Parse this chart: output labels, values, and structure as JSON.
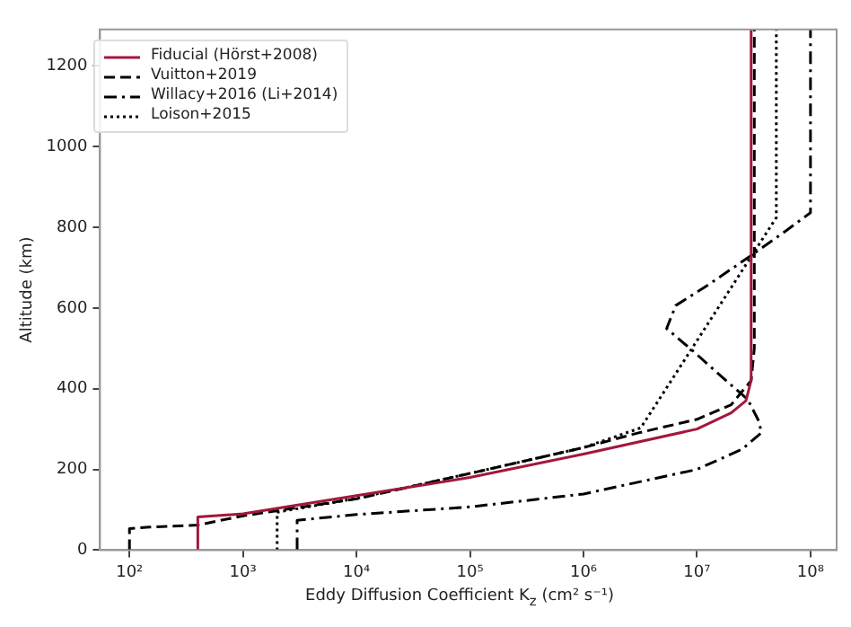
{
  "chart_data": {
    "type": "line",
    "xlabel": "Eddy Diffusion Coefficient K$_{z}$ (cm² s⁻¹)",
    "ylabel": "Altitude (km)",
    "log": "x",
    "grid": false,
    "legend": "top left",
    "marker": "none",
    "xlim": [
      55,
      170000000
    ],
    "ylim": [
      0,
      1290
    ],
    "xticks": [
      {
        "value": 100,
        "label": "10²"
      },
      {
        "value": 1000,
        "label": "10³"
      },
      {
        "value": 10000,
        "label": "10⁴"
      },
      {
        "value": 100000,
        "label": "10⁵"
      },
      {
        "value": 1000000,
        "label": "10⁶"
      },
      {
        "value": 10000000,
        "label": "10⁷"
      },
      {
        "value": 100000000,
        "label": "10⁸"
      }
    ],
    "yticks": [
      0,
      200,
      400,
      600,
      800,
      1000,
      1200
    ],
    "series": [
      {
        "name": "Fiducial (Hörst+2008)",
        "color": "#a3173b",
        "line_style": "solid",
        "x": [
          400,
          400,
          1000,
          10000,
          100000,
          1000000,
          10000000,
          20000000,
          27000000,
          30000000,
          30000000
        ],
        "values": [
          0,
          82,
          90,
          135,
          180,
          238,
          300,
          340,
          370,
          420,
          1290
        ]
      },
      {
        "name": "Vuitton+2019",
        "color": "#000000",
        "line_style": "dashed",
        "x": [
          100,
          100,
          150,
          400,
          1000,
          10000,
          100000,
          1000000,
          3000000,
          10000000,
          20000000,
          30000000,
          32000000,
          32000000
        ],
        "values": [
          0,
          53,
          57,
          62,
          85,
          127,
          190,
          254,
          290,
          324,
          360,
          420,
          500,
          1290
        ]
      },
      {
        "name": "Willacy+2016 (Li+2014)",
        "color": "#000000",
        "line_style": "dashdot",
        "x": [
          3000,
          3000,
          10000,
          100000,
          1000000,
          10000000,
          25000000,
          37000000,
          35000000,
          28000000,
          15000000,
          9000000,
          5400000,
          6500000,
          13000000,
          30000000,
          60000000,
          100000000,
          100000000
        ],
        "values": [
          0,
          74,
          88,
          107,
          139,
          200,
          250,
          291,
          320,
          373,
          440,
          496,
          549,
          606,
          660,
          730,
          790,
          836,
          1290
        ]
      },
      {
        "name": "Loison+2015",
        "color": "#000000",
        "line_style": "dotted",
        "x": [
          2000,
          2000,
          10000,
          100000,
          1000000,
          3200000,
          50000000,
          50000000
        ],
        "values": [
          0,
          94,
          128,
          190,
          254,
          303,
          824,
          1290
        ]
      }
    ]
  }
}
